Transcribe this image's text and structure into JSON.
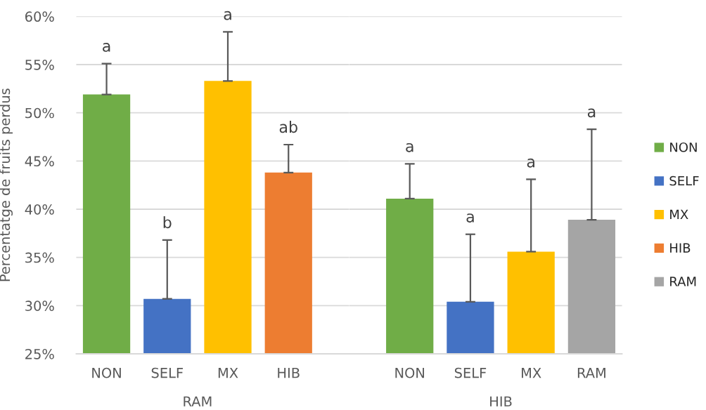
{
  "chart_data": [
    {
      "type": "bar",
      "stacked": true,
      "ylabel": "Percentatge de fruits perdus",
      "xlabel": "RAM",
      "categories": [
        "NON",
        "SELF",
        "MX",
        "HIB"
      ],
      "series": [
        {
          "name": "NON",
          "color": "#70ad47",
          "values": [
            51.9,
            null,
            null,
            null
          ],
          "errors": [
            [
              51.9,
              55.1
            ],
            null,
            null,
            null
          ]
        },
        {
          "name": "SELF",
          "color": "#4472c4",
          "values": [
            null,
            30.7,
            null,
            null
          ],
          "errors": [
            null,
            [
              30.7,
              36.8
            ],
            null,
            null
          ]
        },
        {
          "name": "MX",
          "color": "#ffc000",
          "values": [
            null,
            null,
            53.3,
            null
          ],
          "errors": [
            null,
            null,
            [
              53.3,
              58.4
            ],
            null
          ]
        },
        {
          "name": "HIB",
          "color": "#ed7d31",
          "values": [
            null,
            null,
            null,
            43.8
          ],
          "errors": [
            null,
            null,
            null,
            [
              43.8,
              46.7
            ]
          ]
        }
      ],
      "ylim": [
        25,
        60
      ],
      "yticks": [
        {
          "value": 25,
          "label": "25%"
        },
        {
          "value": 30,
          "label": "30%"
        },
        {
          "value": 35,
          "label": "35%"
        },
        {
          "value": 40,
          "label": "40%"
        },
        {
          "value": 45,
          "label": "45%"
        },
        {
          "value": 50,
          "label": "50%"
        },
        {
          "value": 55,
          "label": "55%"
        },
        {
          "value": 60,
          "label": "60%"
        }
      ],
      "grid": "y",
      "legend": "right",
      "annotations": [
        {
          "text": "a",
          "x": "NON",
          "y": 55.1
        },
        {
          "text": "b",
          "x": "SELF",
          "y": 36.8
        },
        {
          "text": "a",
          "x": "MX",
          "y": 58.4
        },
        {
          "text": "ab",
          "x": "HIB",
          "y": 46.7
        }
      ]
    },
    {
      "type": "bar",
      "stacked": true,
      "xlabel": "HIB",
      "categories": [
        "NON",
        "SELF",
        "MX",
        "RAM"
      ],
      "series": [
        {
          "name": "NON",
          "color": "#70ad47",
          "values": [
            41.1,
            null,
            null,
            null
          ],
          "errors": [
            [
              41.1,
              44.7
            ],
            null,
            null,
            null
          ]
        },
        {
          "name": "SELF",
          "color": "#4472c4",
          "values": [
            null,
            30.4,
            null,
            null
          ],
          "errors": [
            null,
            [
              30.4,
              37.4
            ],
            null,
            null
          ]
        },
        {
          "name": "MX",
          "color": "#ffc000",
          "values": [
            null,
            null,
            35.6,
            null
          ],
          "errors": [
            null,
            null,
            [
              35.6,
              43.1
            ],
            null
          ]
        },
        {
          "name": "RAM",
          "color": "#a5a5a5",
          "values": [
            null,
            null,
            null,
            38.9
          ],
          "errors": [
            null,
            null,
            null,
            [
              38.9,
              48.3
            ]
          ]
        }
      ],
      "ylim": [
        25,
        60
      ],
      "yticks": [
        25,
        30,
        35,
        40,
        45,
        50,
        55,
        60
      ],
      "grid": "y",
      "tick_labels": "x",
      "legend": "right",
      "annotations": [
        {
          "text": "a",
          "x": "NON",
          "y": 44.7
        },
        {
          "text": "a",
          "x": "SELF",
          "y": 37.4
        },
        {
          "text": "a",
          "x": "MX",
          "y": 43.1
        },
        {
          "text": "a",
          "x": "RAM",
          "y": 48.3
        }
      ]
    }
  ]
}
